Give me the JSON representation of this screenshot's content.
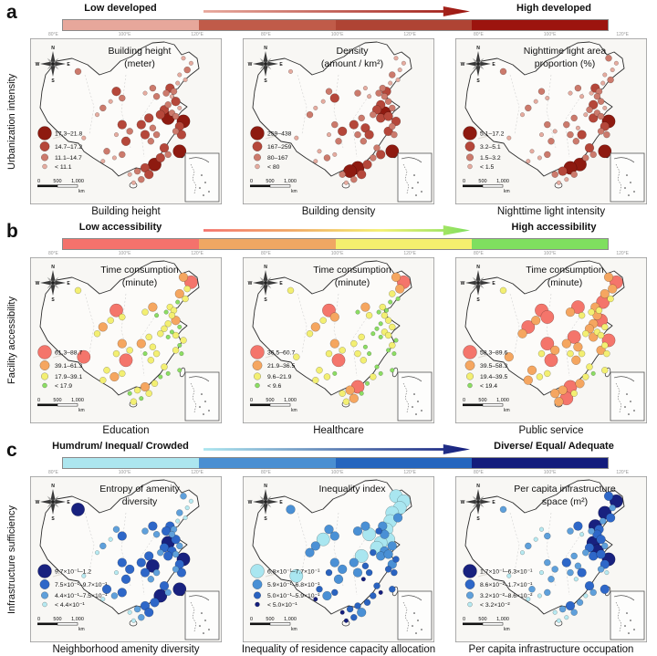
{
  "figure": {
    "rows": [
      {
        "panel_letter": "a",
        "row_label": "Urbanization intensity",
        "gradient": {
          "left_label": "Low developed",
          "right_label": "High developed",
          "bar_colors": [
            "#E7A79B",
            "#C05B49",
            "#AF4434",
            "#9C140E"
          ],
          "arrow_colors": [
            "#E7A79B",
            "#9C140E"
          ]
        },
        "dot_colors": [
          "#8E1A10",
          "#B5473A",
          "#CC7A6C",
          "#E6ACA0"
        ],
        "maps": [
          {
            "title_line1": "Building height",
            "title_line2": "(meter)",
            "caption": "Building height",
            "legend": [
              "17.3–21.8",
              "14.7–17.2",
              "11.1–14.7",
              "< 11.1"
            ],
            "classes": [
              3,
              3,
              2,
              3,
              3,
              3,
              1,
              2,
              2,
              3,
              2,
              3,
              2,
              2,
              1,
              2,
              3,
              1,
              2,
              3,
              1,
              2,
              1,
              0,
              2,
              0,
              1,
              2,
              1,
              1,
              1,
              2,
              1,
              2,
              2,
              1,
              2,
              3,
              1,
              2,
              3,
              2,
              3,
              1,
              2,
              1,
              0,
              1,
              2,
              3,
              1,
              2,
              3,
              3,
              2,
              3,
              0
            ]
          },
          {
            "title_line1": "Density",
            "title_line2": "(amount / km²)",
            "caption": "Building density",
            "legend": [
              "259–438",
              "167–259",
              "80–167",
              "< 80"
            ],
            "classes": [
              3,
              3,
              3,
              2,
              3,
              3,
              2,
              1,
              2,
              2,
              3,
              2,
              3,
              3,
              2,
              1,
              3,
              2,
              1,
              2,
              1,
              0,
              2,
              1,
              1,
              1,
              2,
              1,
              2,
              2,
              1,
              1,
              2,
              1,
              2,
              2,
              1,
              3,
              2,
              3,
              2,
              3,
              3,
              2,
              1,
              2,
              1,
              0,
              0,
              2,
              1,
              2,
              3,
              3,
              3,
              2,
              0
            ]
          },
          {
            "title_line1": "Nighttime light area",
            "title_line2": "proportion (%)",
            "caption": "Nighttime light intensity",
            "legend": [
              "5.1–17.2",
              "3.2–5.1",
              "1.5–3.2",
              "< 1.5"
            ],
            "classes": [
              2,
              3,
              3,
              3,
              2,
              3,
              1,
              2,
              3,
              2,
              2,
              3,
              3,
              2,
              2,
              3,
              3,
              2,
              1,
              3,
              2,
              2,
              3,
              1,
              2,
              0,
              1,
              2,
              2,
              2,
              2,
              3,
              2,
              1,
              2,
              2,
              3,
              3,
              2,
              3,
              3,
              2,
              3,
              1,
              2,
              2,
              0,
              0,
              1,
              2,
              2,
              3,
              3,
              3,
              2,
              3,
              0
            ]
          }
        ]
      },
      {
        "panel_letter": "b",
        "row_label": "Facility accessibility",
        "gradient": {
          "left_label": "Low accessibility",
          "right_label": "High accessibility",
          "bar_colors": [
            "#F4726C",
            "#F0A763",
            "#F4F06E",
            "#7FDF5F"
          ],
          "arrow_colors": [
            "#F4726C",
            "#F0A763",
            "#F4F06E",
            "#7FDF5F"
          ]
        },
        "dot_colors": [
          "#F4756B",
          "#F5A660",
          "#F3EF72",
          "#8CDE63"
        ],
        "maps": [
          {
            "title_line1": "Time consumption",
            "title_line2": "(minute)",
            "caption": "Education",
            "legend": [
              "61.3–88.7",
              "39.1–61.3",
              "17.9–39.1",
              "< 17.9"
            ],
            "classes": [
              1,
              0,
              2,
              1,
              2,
              3,
              2,
              2,
              3,
              2,
              1,
              2,
              3,
              2,
              0,
              2,
              2,
              1,
              2,
              3,
              2,
              3,
              2,
              3,
              2,
              2,
              3,
              2,
              3,
              2,
              1,
              2,
              3,
              2,
              2,
              1,
              2,
              2,
              0,
              2,
              1,
              2,
              2,
              2,
              3,
              3,
              2,
              1,
              2,
              3,
              2,
              3,
              2,
              0,
              1,
              2,
              3
            ]
          },
          {
            "title_line1": "Time consumption",
            "title_line2": "(minute)",
            "caption": "Healthcare",
            "legend": [
              "36.5–60.7",
              "21.9–36.5",
              "9.6–21.9",
              "< 9.6"
            ],
            "classes": [
              1,
              0,
              1,
              2,
              3,
              3,
              2,
              3,
              3,
              2,
              1,
              3,
              2,
              2,
              0,
              1,
              2,
              2,
              3,
              2,
              3,
              2,
              3,
              3,
              2,
              3,
              2,
              3,
              3,
              2,
              2,
              3,
              2,
              3,
              2,
              1,
              2,
              2,
              0,
              2,
              2,
              3,
              2,
              3,
              3,
              2,
              3,
              0,
              1,
              2,
              3,
              1,
              2,
              2,
              1,
              2,
              3
            ]
          },
          {
            "title_line1": "Time consumption",
            "title_line2": "(minute)",
            "caption": "Public service",
            "legend": [
              "58.3–89.6",
              "39.5–58.3",
              "19.4–39.5",
              "< 19.4"
            ],
            "classes": [
              1,
              0,
              1,
              1,
              2,
              0,
              1,
              2,
              2,
              1,
              0,
              1,
              2,
              2,
              0,
              0,
              1,
              0,
              1,
              2,
              1,
              2,
              2,
              1,
              2,
              0,
              2,
              1,
              2,
              0,
              1,
              1,
              2,
              2,
              1,
              0,
              1,
              2,
              0,
              1,
              2,
              2,
              1,
              2,
              3,
              2,
              1,
              0,
              1,
              1,
              2,
              0,
              1,
              1,
              0,
              1,
              2
            ]
          }
        ]
      },
      {
        "panel_letter": "c",
        "row_label": "Infrastructure sufficiency",
        "gradient": {
          "left_label": "Humdrum/ Inequal/ Crowded",
          "right_label": "Diverse/ Equal/ Adequate",
          "bar_colors": [
            "#ACE6EF",
            "#4A8FD2",
            "#2565BE",
            "#131C7C"
          ],
          "arrow_colors": [
            "#ACE6EF",
            "#131C7C"
          ]
        },
        "dot_colors": [
          "#18217F",
          "#2E67C8",
          "#5FA0DB",
          "#B7EAF2"
        ],
        "maps": [
          {
            "title_line1": "Entropy of amenity",
            "title_line2": "diversity",
            "caption": "Neighborhood amenity diversity",
            "legend": [
              "9.7×10⁻¹–1.2",
              "7.5×10⁻¹–9.7×10⁻¹",
              "4.4×10⁻¹–7.5×10⁻¹",
              "< 4.4×10⁻¹"
            ],
            "classes": [
              2,
              3,
              3,
              2,
              3,
              3,
              1,
              2,
              1,
              2,
              1,
              2,
              2,
              0,
              2,
              1,
              3,
              1,
              0,
              2,
              1,
              1,
              2,
              1,
              2,
              0,
              1,
              2,
              1,
              1,
              1,
              0,
              1,
              2,
              2,
              1,
              1,
              3,
              1,
              1,
              2,
              1,
              3,
              1,
              2,
              0,
              1,
              1,
              2,
              3,
              1,
              2,
              3,
              3,
              2,
              3,
              0
            ]
          },
          {
            "title_line1": "Inequality index",
            "title_line2": "",
            "caption": "Inequality of residence capacity allocation",
            "legend": [
              "6.8×10⁻¹–7.7×10⁻¹",
              "5.9×10⁻¹–6.8×10⁻¹",
              "5.0×10⁻¹–5.9×10⁻¹",
              "< 5.0×10⁻¹"
            ],
            "dot_colors": [
              "#A9E6F0",
              "#4A90D5",
              "#2A63C0",
              "#151F7E"
            ],
            "classes": [
              0,
              0,
              0,
              0,
              1,
              0,
              1,
              0,
              2,
              1,
              1,
              1,
              0,
              1,
              1,
              1,
              0,
              0,
              0,
              1,
              0,
              1,
              2,
              1,
              1,
              2,
              1,
              2,
              2,
              0,
              1,
              2,
              1,
              2,
              3,
              1,
              1,
              2,
              1,
              2,
              1,
              2,
              3,
              2,
              3,
              2,
              2,
              2,
              2,
              3,
              1,
              2,
              3,
              0,
              1,
              1,
              2
            ]
          },
          {
            "title_line1": "Per capita infrastructure",
            "title_line2": "space (m²)",
            "caption": "Per capita infrastructure occupation",
            "legend": [
              "1.7×10⁻¹–6.3×10⁻¹",
              "8.6×10⁻²–1.7×10⁻¹",
              "3.2×10⁻²–8.6×10⁻²",
              "< 3.2×10⁻²"
            ],
            "classes": [
              1,
              0,
              2,
              0,
              1,
              2,
              0,
              1,
              2,
              1,
              1,
              2,
              3,
              2,
              3,
              2,
              3,
              1,
              0,
              2,
              1,
              0,
              2,
              1,
              1,
              0,
              1,
              2,
              3,
              2,
              1,
              2,
              2,
              1,
              3,
              2,
              2,
              3,
              2,
              2,
              3,
              2,
              3,
              1,
              2,
              3,
              2,
              1,
              2,
              3,
              2,
              3,
              3,
              3,
              2,
              3,
              1
            ]
          }
        ]
      }
    ],
    "map_chrome": {
      "compass": {
        "n": "N",
        "e": "E",
        "s": "S",
        "w": "W"
      },
      "scalebar": {
        "zero": "0",
        "five_hundred": "500",
        "one_thousand": "1,000",
        "unit": "km"
      },
      "lon_ticks": [
        "80°E",
        "100°E",
        "120°E"
      ]
    },
    "points": [
      [
        80,
        12
      ],
      [
        84,
        15
      ],
      [
        82,
        19
      ],
      [
        78,
        22
      ],
      [
        81,
        25
      ],
      [
        77,
        27
      ],
      [
        73,
        30
      ],
      [
        75,
        32
      ],
      [
        71,
        33
      ],
      [
        74,
        35
      ],
      [
        64,
        30
      ],
      [
        60,
        33
      ],
      [
        66,
        35
      ],
      [
        25,
        20
      ],
      [
        45,
        32
      ],
      [
        48,
        36
      ],
      [
        42,
        38
      ],
      [
        76,
        38
      ],
      [
        72,
        40
      ],
      [
        78,
        42
      ],
      [
        70,
        43
      ],
      [
        74,
        45
      ],
      [
        68,
        46
      ],
      [
        72,
        48
      ],
      [
        76,
        47
      ],
      [
        80,
        50
      ],
      [
        78,
        53
      ],
      [
        76,
        56
      ],
      [
        79,
        58
      ],
      [
        62,
        48
      ],
      [
        58,
        52
      ],
      [
        64,
        54
      ],
      [
        60,
        58
      ],
      [
        66,
        58
      ],
      [
        63,
        62
      ],
      [
        48,
        52
      ],
      [
        52,
        56
      ],
      [
        45,
        58
      ],
      [
        50,
        62
      ],
      [
        40,
        68
      ],
      [
        44,
        72
      ],
      [
        48,
        70
      ],
      [
        38,
        74
      ],
      [
        70,
        66
      ],
      [
        72,
        70
      ],
      [
        68,
        72
      ],
      [
        65,
        76
      ],
      [
        60,
        78
      ],
      [
        56,
        80
      ],
      [
        52,
        82
      ],
      [
        62,
        82
      ],
      [
        58,
        85
      ],
      [
        54,
        87
      ],
      [
        28,
        60
      ],
      [
        38,
        42
      ],
      [
        35,
        46
      ],
      [
        78,
        68
      ]
    ]
  }
}
